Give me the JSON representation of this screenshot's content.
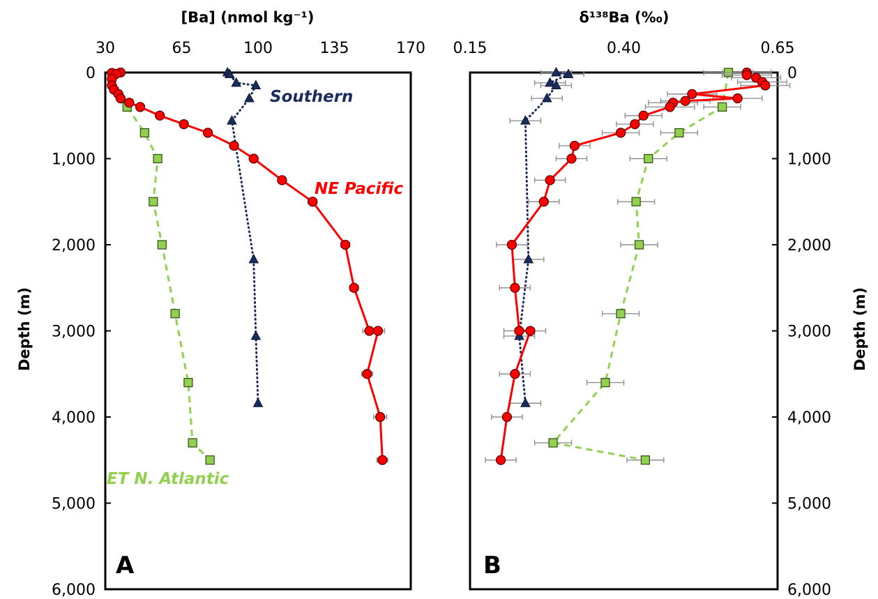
{
  "colors": {
    "ne_pacific": "#ff0000",
    "southern": "#1a2b5e",
    "atlantic": "#92d050"
  },
  "icons": {
    "ne_pacific": "circle-marker",
    "southern": "triangle-marker",
    "atlantic": "square-marker"
  },
  "chart_data": [
    {
      "type": "scatter",
      "panel_label": "A",
      "title": "",
      "xlabel": "[Ba] (nmol kg⁻¹)",
      "ylabel": "Depth (m)",
      "xlim": [
        30,
        170
      ],
      "ylim": [
        6000,
        0
      ],
      "x_axis_position": "top",
      "y_axis_position": "left",
      "grid": false,
      "xticks": [
        30,
        65,
        100,
        135,
        170
      ],
      "xtick_labels": [
        "30",
        "65",
        "100",
        "135",
        "170"
      ],
      "yticks": [
        0,
        1000,
        2000,
        3000,
        4000,
        5000,
        6000
      ],
      "ytick_labels": [
        "0",
        "1,000",
        "2,000",
        "3,000",
        "4,000",
        "5,000",
        "6,000"
      ],
      "series": [
        {
          "name": "NE Pacific",
          "marker": "circle",
          "line": "solid",
          "points": [
            {
              "x": 37,
              "y": 0
            },
            {
              "x": 33,
              "y": 5
            },
            {
              "x": 35,
              "y": 15
            },
            {
              "x": 33,
              "y": 75
            },
            {
              "x": 33,
              "y": 150
            },
            {
              "x": 34,
              "y": 200
            },
            {
              "x": 36,
              "y": 250
            },
            {
              "x": 37,
              "y": 300
            },
            {
              "x": 41,
              "y": 350
            },
            {
              "x": 46,
              "y": 400
            },
            {
              "x": 55,
              "y": 500
            },
            {
              "x": 66,
              "y": 600
            },
            {
              "x": 77,
              "y": 700
            },
            {
              "x": 89,
              "y": 850
            },
            {
              "x": 98,
              "y": 1000
            },
            {
              "x": 111,
              "y": 1250
            },
            {
              "x": 125,
              "y": 1500
            },
            {
              "x": 140,
              "y": 2000
            },
            {
              "x": 144,
              "y": 2500
            },
            {
              "x": 151,
              "y": 3000
            },
            {
              "x": 155,
              "y": 3000
            },
            {
              "x": 150,
              "y": 3500
            },
            {
              "x": 156,
              "y": 4000
            },
            {
              "x": 157,
              "y": 4500
            }
          ],
          "xerr": [
            0.5,
            0.5,
            0.5,
            0.5,
            0.5,
            0.5,
            0.5,
            0.5,
            0.5,
            0.5,
            0.5,
            0.5,
            0.5,
            1.5,
            1.5,
            1.5,
            2,
            2,
            2,
            3,
            3,
            2.5,
            3,
            2.5
          ]
        },
        {
          "name": "Southern",
          "marker": "triangle",
          "line": "dotted",
          "points": [
            {
              "x": 86,
              "y": 0
            },
            {
              "x": 87,
              "y": 20
            },
            {
              "x": 90,
              "y": 120
            },
            {
              "x": 99,
              "y": 150
            },
            {
              "x": 96,
              "y": 300
            },
            {
              "x": 88,
              "y": 560
            },
            {
              "x": 98,
              "y": 2170
            },
            {
              "x": 99,
              "y": 3060
            },
            {
              "x": 100,
              "y": 3840
            }
          ],
          "xerr": [
            0.5,
            0.5,
            0.5,
            0.5,
            0.5,
            0.5,
            0.5,
            0.5,
            0.5
          ]
        },
        {
          "name": "ET N. Atlantic",
          "marker": "square",
          "line": "dashed",
          "points": [
            {
              "x": 40,
              "y": 400
            },
            {
              "x": 48,
              "y": 700
            },
            {
              "x": 54,
              "y": 1000
            },
            {
              "x": 52,
              "y": 1500
            },
            {
              "x": 56,
              "y": 2000
            },
            {
              "x": 62,
              "y": 2800
            },
            {
              "x": 68,
              "y": 3600
            },
            {
              "x": 70,
              "y": 4300
            },
            {
              "x": 78,
              "y": 4500
            }
          ],
          "xerr": [
            0.5,
            0.5,
            0.5,
            0.5,
            0.5,
            0.5,
            0.5,
            0.5,
            0.5
          ]
        }
      ],
      "annotations": [
        {
          "text": "Southern",
          "series": "Southern"
        },
        {
          "text": "NE Pacific",
          "series": "NE Pacific"
        },
        {
          "text": "ET N. Atlantic",
          "series": "ET N. Atlantic"
        }
      ]
    },
    {
      "type": "scatter",
      "panel_label": "B",
      "title": "",
      "xlabel": "δ¹³⁸Ba (‰)",
      "ylabel": "Depth (m)",
      "xlim": [
        0.15,
        0.65
      ],
      "ylim": [
        6000,
        0
      ],
      "x_axis_position": "top",
      "y_axis_position": "right",
      "grid": false,
      "xticks": [
        0.15,
        0.4,
        0.65
      ],
      "xtick_labels": [
        "0.15",
        "0.40",
        "0.65"
      ],
      "yticks": [
        0,
        1000,
        2000,
        3000,
        4000,
        5000,
        6000
      ],
      "ytick_labels": [
        "0",
        "1,000",
        "2,000",
        "3,000",
        "4,000",
        "5,000",
        "6,000"
      ],
      "series": [
        {
          "name": "NE Pacific",
          "marker": "circle",
          "line": "solid",
          "points": [
            {
              "x": 0.6,
              "y": 0
            },
            {
              "x": 0.6,
              "y": 30
            },
            {
              "x": 0.615,
              "y": 60
            },
            {
              "x": 0.625,
              "y": 110
            },
            {
              "x": 0.63,
              "y": 150
            },
            {
              "x": 0.511,
              "y": 250
            },
            {
              "x": 0.585,
              "y": 300
            },
            {
              "x": 0.5,
              "y": 330
            },
            {
              "x": 0.48,
              "y": 350
            },
            {
              "x": 0.475,
              "y": 400
            },
            {
              "x": 0.432,
              "y": 500
            },
            {
              "x": 0.418,
              "y": 600
            },
            {
              "x": 0.395,
              "y": 700
            },
            {
              "x": 0.32,
              "y": 850
            },
            {
              "x": 0.315,
              "y": 1000
            },
            {
              "x": 0.28,
              "y": 1250
            },
            {
              "x": 0.27,
              "y": 1500
            },
            {
              "x": 0.218,
              "y": 2000
            },
            {
              "x": 0.223,
              "y": 2500
            },
            {
              "x": 0.23,
              "y": 3000
            },
            {
              "x": 0.248,
              "y": 3000
            },
            {
              "x": 0.223,
              "y": 3500
            },
            {
              "x": 0.21,
              "y": 4000
            },
            {
              "x": 0.2,
              "y": 4500
            }
          ],
          "xerr": [
            0.04,
            0.04,
            0.04,
            0.04,
            0.04,
            0.04,
            0.04,
            0.04,
            0.04,
            0.04,
            0.03,
            0.03,
            0.03,
            0.025,
            0.025,
            0.025,
            0.025,
            0.025,
            0.025,
            0.025,
            0.025,
            0.025,
            0.025,
            0.025
          ]
        },
        {
          "name": "Southern",
          "marker": "triangle",
          "line": "dotted",
          "points": [
            {
              "x": 0.29,
              "y": 0
            },
            {
              "x": 0.31,
              "y": 20
            },
            {
              "x": 0.28,
              "y": 120
            },
            {
              "x": 0.29,
              "y": 150
            },
            {
              "x": 0.275,
              "y": 300
            },
            {
              "x": 0.24,
              "y": 560
            },
            {
              "x": 0.245,
              "y": 2170
            },
            {
              "x": 0.23,
              "y": 3060
            },
            {
              "x": 0.24,
              "y": 3840
            }
          ],
          "xerr": [
            0.025,
            0.025,
            0.025,
            0.025,
            0.025,
            0.025,
            0.025,
            0.025,
            0.025
          ]
        },
        {
          "name": "ET N. Atlantic",
          "marker": "square",
          "line": "dashed",
          "points": [
            {
              "x": 0.57,
              "y": 0
            },
            {
              "x": 0.56,
              "y": 400
            },
            {
              "x": 0.49,
              "y": 700
            },
            {
              "x": 0.44,
              "y": 1000
            },
            {
              "x": 0.42,
              "y": 1500
            },
            {
              "x": 0.425,
              "y": 2000
            },
            {
              "x": 0.395,
              "y": 2800
            },
            {
              "x": 0.37,
              "y": 3600
            },
            {
              "x": 0.285,
              "y": 4300
            },
            {
              "x": 0.435,
              "y": 4500
            }
          ],
          "xerr": [
            0.04,
            0.03,
            0.03,
            0.03,
            0.03,
            0.03,
            0.03,
            0.03,
            0.03,
            0.03
          ]
        }
      ],
      "annotations": []
    }
  ]
}
